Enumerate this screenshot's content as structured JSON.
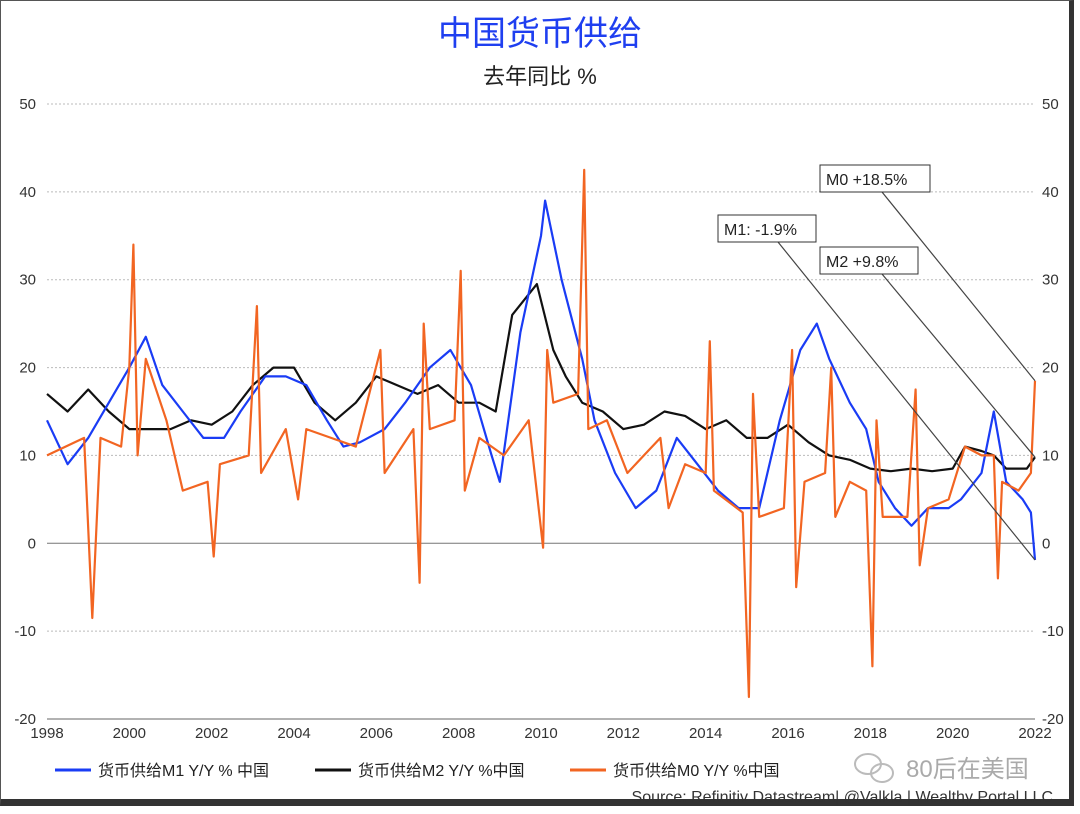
{
  "chart_data": {
    "type": "line",
    "title": "中国货币供给",
    "subtitle": "去年同比 %",
    "xlabel": "",
    "ylabel": "",
    "xlim": [
      1998,
      2022
    ],
    "ylim": [
      -20,
      50
    ],
    "x_ticks": [
      "1998",
      "2000",
      "2002",
      "2004",
      "2006",
      "2008",
      "2010",
      "2012",
      "2014",
      "2016",
      "2018",
      "2020",
      "2022"
    ],
    "y_ticks": [
      "50",
      "40",
      "30",
      "20",
      "10",
      "0",
      "-10",
      "-20"
    ],
    "grid": "horizontal dotted",
    "legend_position": "bottom",
    "series": [
      {
        "name": "货币供给M1 Y/Y % 中国",
        "color": "#1a3cf5",
        "x": [
          1998,
          1998.5,
          1999,
          1999.5,
          2000,
          2000.4,
          2000.8,
          2001.3,
          2001.8,
          2002.3,
          2002.7,
          2003.3,
          2003.8,
          2004.3,
          2004.8,
          2005.2,
          2005.6,
          2006.2,
          2006.7,
          2007.3,
          2007.8,
          2008.3,
          2008.8,
          2009,
          2009.5,
          2010,
          2010.1,
          2010.5,
          2011,
          2011.3,
          2011.8,
          2012.3,
          2012.8,
          2013.3,
          2013.8,
          2014.3,
          2014.8,
          2015.3,
          2015.8,
          2016.3,
          2016.7,
          2017,
          2017.5,
          2017.9,
          2018.2,
          2018.6,
          2019,
          2019.4,
          2019.9,
          2020.2,
          2020.7,
          2021,
          2021.3,
          2021.7,
          2021.9,
          2022
        ],
        "y": [
          14,
          9,
          12,
          16,
          20,
          23.5,
          18,
          15,
          12,
          12,
          15,
          19,
          19,
          18,
          14,
          11,
          11.5,
          13,
          16,
          20,
          22,
          18,
          10,
          7,
          24,
          35,
          39,
          30,
          21,
          14,
          8,
          4,
          6,
          12,
          9,
          6,
          4,
          4,
          14,
          22,
          25,
          21,
          16,
          13,
          7,
          4,
          2,
          4,
          4,
          5,
          8,
          15,
          7,
          5,
          3.5,
          -1.9
        ]
      },
      {
        "name": "货币供给M2 Y/Y %中国",
        "color": "#111111",
        "x": [
          1998,
          1998.5,
          1999,
          1999.5,
          2000,
          2001,
          2001.5,
          2002,
          2002.5,
          2003,
          2003.5,
          2004,
          2004.5,
          2005,
          2005.5,
          2006,
          2006.5,
          2007,
          2007.5,
          2008,
          2008.5,
          2008.9,
          2009.3,
          2009.9,
          2010.3,
          2010.6,
          2011,
          2011.5,
          2012,
          2012.5,
          2013,
          2013.5,
          2014,
          2014.5,
          2015,
          2015.5,
          2016,
          2016.5,
          2017,
          2017.5,
          2018,
          2018.5,
          2019,
          2019.5,
          2020,
          2020.3,
          2020.7,
          2021,
          2021.3,
          2021.8,
          2022
        ],
        "y": [
          17,
          15,
          17.5,
          15,
          13,
          13,
          14,
          13.5,
          15,
          18,
          20,
          20,
          16,
          14,
          16,
          19,
          18,
          17,
          18,
          16,
          16,
          15,
          26,
          29.5,
          22,
          19,
          16,
          15,
          13,
          13.5,
          15,
          14.5,
          13,
          14,
          12,
          12,
          13.5,
          11.5,
          10,
          9.5,
          8.5,
          8.2,
          8.5,
          8.2,
          8.5,
          11,
          10.5,
          10,
          8.5,
          8.5,
          9.8
        ]
      },
      {
        "name": "货币供给M0 Y/Y %中国",
        "color": "#f26522",
        "x": [
          1998,
          1998.9,
          1999.1,
          1999.3,
          1999.8,
          2000,
          2000.1,
          2000.2,
          2000.4,
          2000.9,
          2001.3,
          2001.9,
          2002.05,
          2002.2,
          2002.9,
          2003.1,
          2003.2,
          2003.8,
          2004.1,
          2004.3,
          2004.9,
          2005.5,
          2006.1,
          2006.2,
          2006.9,
          2007.05,
          2007.15,
          2007.3,
          2007.9,
          2008.05,
          2008.15,
          2008.5,
          2009.1,
          2009.7,
          2010.05,
          2010.15,
          2010.3,
          2010.9,
          2011.05,
          2011.15,
          2011.6,
          2012.1,
          2012.5,
          2012.9,
          2013.1,
          2013.5,
          2014.0,
          2014.1,
          2014.2,
          2014.9,
          2015.05,
          2015.15,
          2015.3,
          2015.9,
          2016.1,
          2016.2,
          2016.4,
          2016.9,
          2017.05,
          2017.15,
          2017.5,
          2017.9,
          2018.05,
          2018.15,
          2018.3,
          2018.9,
          2019.1,
          2019.2,
          2019.4,
          2019.9,
          2020.3,
          2020.7,
          2021.0,
          2021.1,
          2021.2,
          2021.6,
          2021.9,
          2022
        ],
        "y": [
          10,
          12,
          -8.5,
          12,
          11,
          20,
          34,
          10,
          21,
          14,
          6,
          7,
          -1.5,
          9,
          10,
          27,
          8,
          13,
          5,
          13,
          12,
          11,
          22,
          8,
          13,
          -4.5,
          25,
          13,
          14,
          31,
          6,
          12,
          10,
          14,
          -0.5,
          22,
          16,
          17,
          42.5,
          13,
          14,
          8,
          10,
          12,
          4,
          9,
          8,
          23,
          6,
          3.5,
          -17.5,
          17,
          3,
          4,
          22,
          -5,
          7,
          8,
          20,
          3,
          7,
          6,
          -14,
          14,
          3,
          3,
          17.5,
          -2.5,
          4,
          5,
          11,
          10,
          10,
          -4,
          7,
          6,
          8,
          18.5
        ]
      }
    ],
    "annotations": [
      {
        "label": "M0 +18.5%",
        "series": 2
      },
      {
        "label": "M1: -1.9%",
        "series": 0
      },
      {
        "label": "M2 +9.8%",
        "series": 1
      }
    ],
    "source": "Source: Refinitiv Datastream| @Valkla | Wealthy Portal LLC",
    "watermark": "80后在美国"
  }
}
